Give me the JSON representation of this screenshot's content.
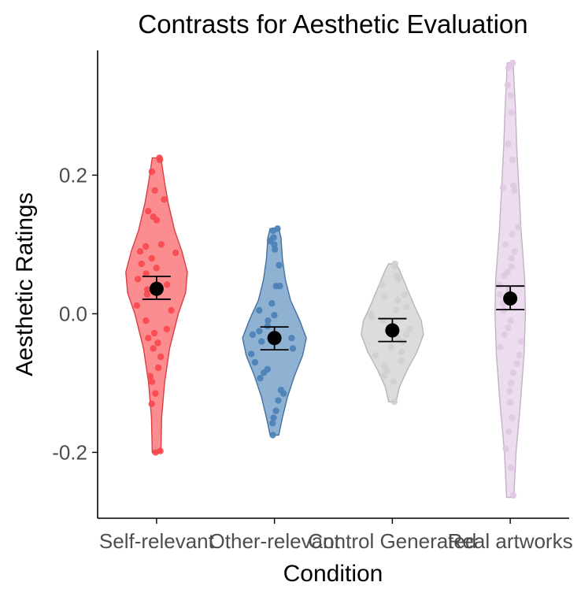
{
  "chart_data": {
    "type": "violin",
    "title": "Contrasts for Aesthetic Evaluation",
    "xlabel": "Condition",
    "ylabel": "Aesthetic Ratings",
    "ylim": [
      -0.295,
      0.38
    ],
    "yticks": [
      -0.2,
      0.0,
      0.2
    ],
    "ytick_labels": [
      "-0.2",
      "0.0",
      "0.2"
    ],
    "grid": false,
    "legend": "none",
    "categories": [
      "Self-relevant",
      "Other-relevant",
      "Control Generated",
      "Real artworks"
    ],
    "groups": [
      {
        "name": "Self-relevant",
        "color": "#f8474c",
        "mean": 0.036,
        "ci_low": 0.021,
        "ci_high": 0.054,
        "range": [
          -0.2,
          0.225
        ],
        "density": [
          [
            -0.2,
            0.12
          ],
          [
            -0.15,
            0.14
          ],
          [
            -0.1,
            0.22
          ],
          [
            -0.05,
            0.36
          ],
          [
            0.0,
            0.6
          ],
          [
            0.03,
            0.8
          ],
          [
            0.06,
            0.85
          ],
          [
            0.09,
            0.7
          ],
          [
            0.12,
            0.5
          ],
          [
            0.16,
            0.32
          ],
          [
            0.19,
            0.22
          ],
          [
            0.225,
            0.12
          ]
        ],
        "points": [
          0.225,
          0.222,
          0.205,
          0.178,
          0.165,
          0.148,
          0.14,
          0.135,
          0.1,
          0.097,
          0.09,
          0.088,
          0.08,
          0.072,
          0.066,
          0.058,
          0.05,
          0.042,
          0.035,
          0.028,
          0.012,
          0.005,
          -0.01,
          -0.022,
          -0.028,
          -0.035,
          -0.042,
          -0.05,
          -0.062,
          -0.078,
          -0.09,
          -0.098,
          -0.115,
          -0.13,
          -0.198,
          -0.2
        ]
      },
      {
        "name": "Other-relevant",
        "color": "#4a81b6",
        "mean": -0.035,
        "ci_low": -0.052,
        "ci_high": -0.019,
        "range": [
          -0.175,
          0.123
        ],
        "density": [
          [
            -0.175,
            0.12
          ],
          [
            -0.15,
            0.22
          ],
          [
            -0.12,
            0.36
          ],
          [
            -0.09,
            0.55
          ],
          [
            -0.06,
            0.78
          ],
          [
            -0.035,
            0.88
          ],
          [
            -0.01,
            0.7
          ],
          [
            0.02,
            0.44
          ],
          [
            0.05,
            0.3
          ],
          [
            0.08,
            0.22
          ],
          [
            0.11,
            0.18
          ],
          [
            0.123,
            0.12
          ]
        ],
        "points": [
          0.123,
          0.12,
          0.11,
          0.105,
          0.1,
          0.093,
          0.07,
          0.04,
          0.04,
          0.015,
          0.005,
          -0.002,
          -0.01,
          -0.018,
          -0.025,
          -0.03,
          -0.035,
          -0.04,
          -0.05,
          -0.058,
          -0.07,
          -0.08,
          -0.085,
          -0.093,
          -0.11,
          -0.115,
          -0.125,
          -0.14,
          -0.15,
          -0.158,
          -0.175
        ]
      },
      {
        "name": "Control Generated",
        "color": "#cfcfcf",
        "mean": -0.024,
        "ci_low": -0.04,
        "ci_high": -0.007,
        "range": [
          -0.127,
          0.072
        ],
        "density": [
          [
            -0.127,
            0.1
          ],
          [
            -0.105,
            0.2
          ],
          [
            -0.08,
            0.42
          ],
          [
            -0.055,
            0.68
          ],
          [
            -0.03,
            0.86
          ],
          [
            -0.01,
            0.8
          ],
          [
            0.01,
            0.62
          ],
          [
            0.03,
            0.46
          ],
          [
            0.05,
            0.3
          ],
          [
            0.065,
            0.18
          ],
          [
            0.072,
            0.1
          ]
        ],
        "points": [
          0.072,
          0.068,
          0.055,
          0.05,
          0.042,
          0.028,
          0.025,
          0.02,
          0.01,
          0.005,
          0.0,
          -0.005,
          -0.01,
          -0.015,
          -0.022,
          -0.03,
          -0.035,
          -0.04,
          -0.048,
          -0.055,
          -0.06,
          -0.068,
          -0.075,
          -0.082,
          -0.09,
          -0.098,
          -0.127
        ]
      },
      {
        "name": "Real artworks",
        "color": "#dfc8e2",
        "mean": 0.022,
        "ci_low": 0.006,
        "ci_high": 0.04,
        "range": [
          -0.265,
          0.362
        ],
        "density": [
          [
            -0.265,
            0.1
          ],
          [
            -0.2,
            0.16
          ],
          [
            -0.13,
            0.28
          ],
          [
            -0.06,
            0.38
          ],
          [
            0.0,
            0.42
          ],
          [
            0.05,
            0.4
          ],
          [
            0.12,
            0.3
          ],
          [
            0.18,
            0.24
          ],
          [
            0.24,
            0.18
          ],
          [
            0.3,
            0.14
          ],
          [
            0.362,
            0.08
          ]
        ],
        "points": [
          0.362,
          0.355,
          0.33,
          0.315,
          0.29,
          0.245,
          0.222,
          0.185,
          0.182,
          0.178,
          0.125,
          0.115,
          0.1,
          0.09,
          0.08,
          0.068,
          0.06,
          0.055,
          0.042,
          0.035,
          0.028,
          0.015,
          0.005,
          -0.01,
          -0.02,
          -0.03,
          -0.04,
          -0.048,
          -0.06,
          -0.072,
          -0.085,
          -0.1,
          -0.112,
          -0.128,
          -0.15,
          -0.17,
          -0.195,
          -0.222,
          -0.262
        ]
      }
    ]
  }
}
